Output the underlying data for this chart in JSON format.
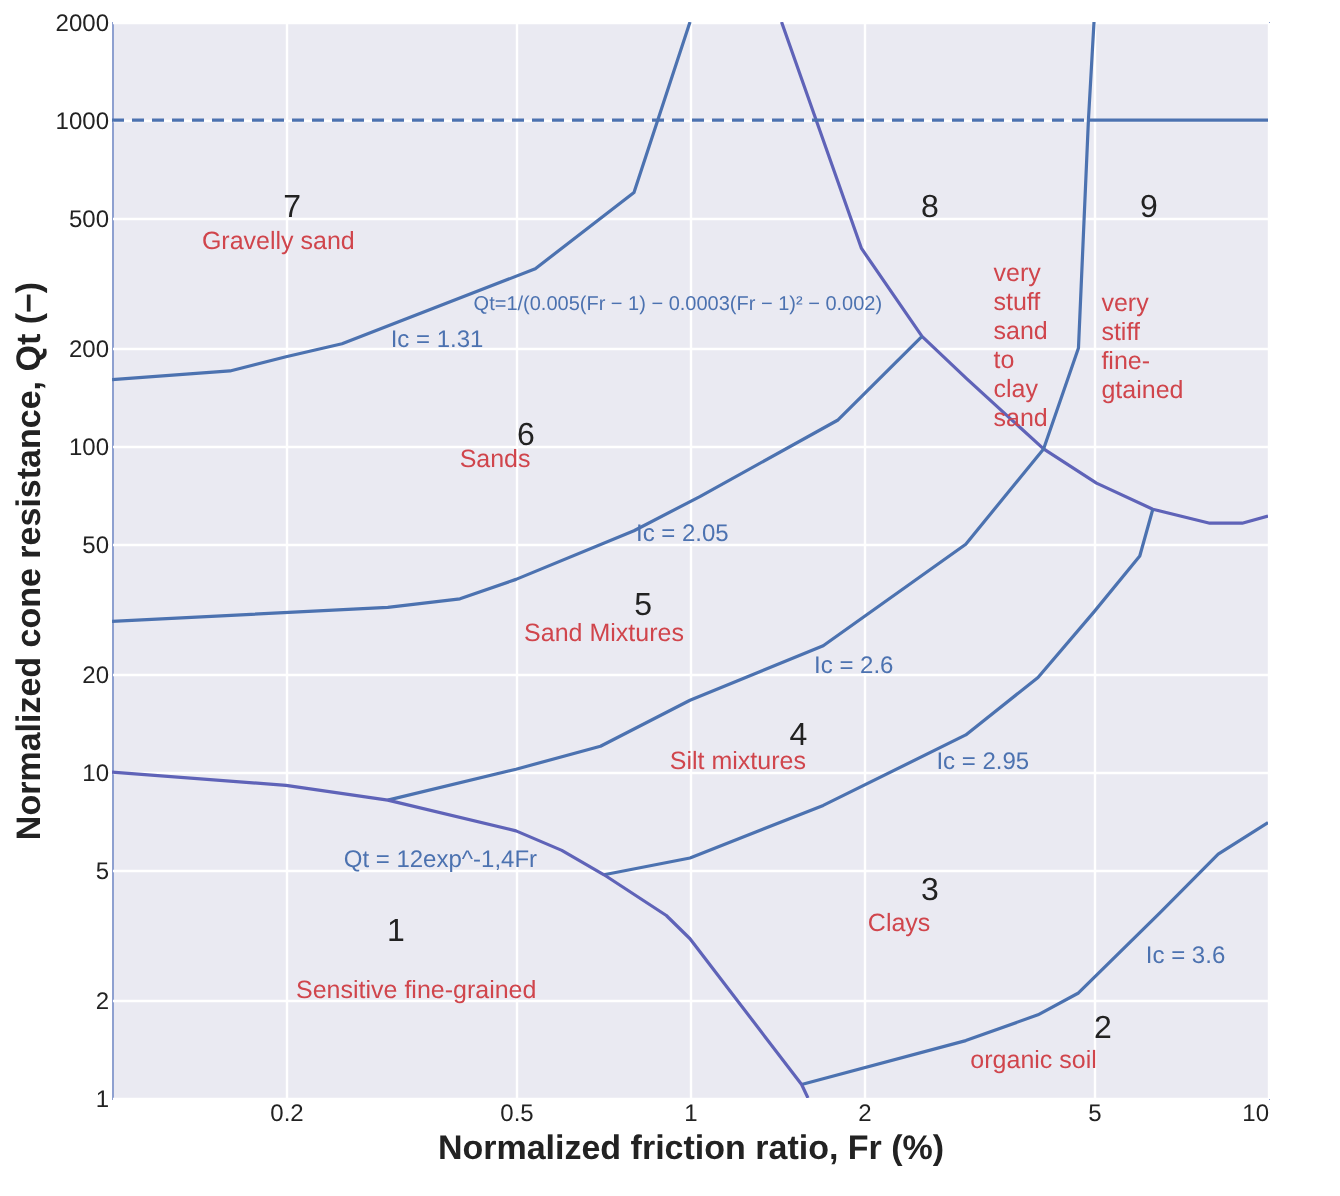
{
  "chart_data": {
    "type": "line",
    "xlabel": "Normalized friction ratio, Fr (%)",
    "ylabel": "Normalized cone resistance, Qt (−)",
    "log": "xy",
    "xlim": [
      0.1,
      10
    ],
    "ylim": [
      1,
      2000
    ],
    "xticks": [
      0.2,
      0.5,
      1,
      2,
      5,
      10
    ],
    "yticks": [
      1,
      2,
      5,
      10,
      20,
      50,
      100,
      200,
      500,
      1000,
      2000
    ],
    "grid": true,
    "marker": "none",
    "line_style": "solid",
    "series": [
      {
        "color": "#4c72b0",
        "x": [
          0.1,
          0.16,
          0.2,
          0.25,
          0.54,
          0.8,
          1.0
        ],
        "values": [
          160,
          170,
          188,
          206,
          350,
          600,
          2000
        ]
      },
      {
        "color": "#5f63b8",
        "x": [
          1.44,
          1.98,
          2.52,
          3.01,
          4.09,
          5.05,
          6.32,
          7.93,
          9.02,
          10
        ],
        "values": [
          2000,
          404,
          217,
          161,
          98,
          77,
          64,
          58,
          58,
          61
        ]
      },
      {
        "color": "#4c72b0",
        "x": [
          0.1,
          0.3,
          0.4,
          0.5,
          0.8,
          1.04,
          1.8,
          2.52
        ],
        "values": [
          29,
          32,
          34,
          39,
          55,
          70,
          120,
          217
        ]
      },
      {
        "color": "#4c72b0",
        "x": [
          0.3,
          0.5,
          0.7,
          1.0,
          1.7,
          3.0,
          4.09,
          4.7,
          4.89,
          5.0
        ],
        "values": [
          8.2,
          10.2,
          12,
          16.6,
          24.4,
          50,
          98,
          200,
          1000,
          2000
        ]
      },
      {
        "color": "#4c72b0",
        "x": [
          0.71,
          1.0,
          1.7,
          3.0,
          4.0,
          5.0,
          6.0,
          6.32
        ],
        "values": [
          4.84,
          5.45,
          7.9,
          13,
          19.5,
          31,
          46,
          64
        ]
      },
      {
        "color": "#4c72b0",
        "x": [
          1.56,
          3.0,
          4.0,
          4.7,
          6.5,
          8.2,
          10
        ],
        "values": [
          1.1,
          1.5,
          1.8,
          2.1,
          3.7,
          5.6,
          7
        ]
      },
      {
        "color": "#5f63b8",
        "x": [
          0.1,
          0.2,
          0.3,
          0.5,
          0.6,
          0.71,
          0.91,
          1.0,
          1.56,
          1.6
        ],
        "values": [
          10,
          9.1,
          8.2,
          6.6,
          5.75,
          4.84,
          3.63,
          3.08,
          1.1,
          1.0
        ]
      },
      {
        "color": "#4c72b0",
        "line_style": "dashed",
        "x": [
          0.1,
          4.89
        ],
        "values": [
          1000,
          1000
        ]
      },
      {
        "color": "#4c72b0",
        "x": [
          4.89,
          10
        ],
        "values": [
          1000,
          1000
        ]
      }
    ],
    "annotations": [
      "7",
      "Gravelly sand",
      "6",
      "Sands",
      "8",
      "very\nstuff\nsand\nto\nclay\nsand",
      "9",
      "very\nstiff\nfine-\ngtained",
      "5",
      "Sand Mixtures",
      "4",
      "Silt mixtures",
      "3",
      "Clays",
      "1",
      "Sensitive fine-grained",
      "2",
      "organic soil",
      "Ic = 1.31",
      "Ic = 2.05",
      "Ic = 2.6",
      "Ic = 2.95",
      "Ic = 3.6",
      "Qt = 12exp^-1,4Fr",
      "Qt=1/(0.005(Fr − 1) − 0.0003(Fr − 1)² − 0.002)"
    ]
  }
}
